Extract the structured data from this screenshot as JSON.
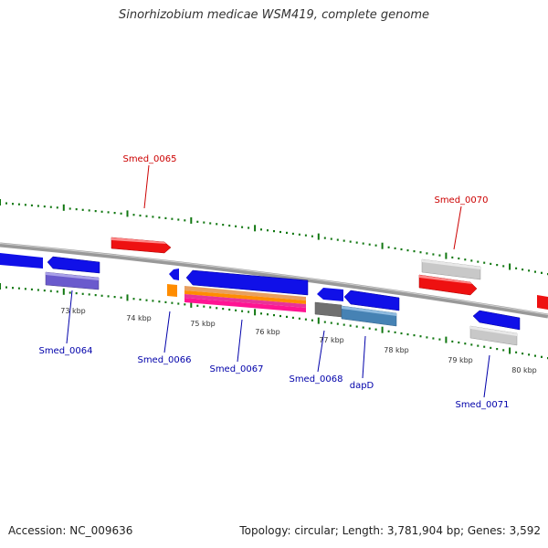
{
  "title": "Sinorhizobium medicae WSM419, complete genome",
  "footer": {
    "accession": "Accession: NC_009636",
    "topology": "Topology: circular; Length: 3,781,904 bp; Genes: 3,592"
  },
  "colors": {
    "forward_gene": "#ff0000",
    "reverse_gene": "#0000ff",
    "label_forward": "#cc0000",
    "label_reverse": "#0000aa",
    "tick": "#117711",
    "backbone": "#888888"
  },
  "scale_labels": [
    "73 kbp",
    "74 kbp",
    "75 kbp",
    "76 kbp",
    "77 kbp",
    "78 kbp",
    "79 kbp",
    "80 kbp"
  ],
  "gene_labels": {
    "smed_0065": "Smed_0065",
    "smed_0070": "Smed_0070",
    "smed_0064": "Smed_0064",
    "smed_0066": "Smed_0066",
    "smed_0067": "Smed_0067",
    "smed_0068": "Smed_0068",
    "dapd": "dapD",
    "smed_0071": "Smed_0071"
  }
}
